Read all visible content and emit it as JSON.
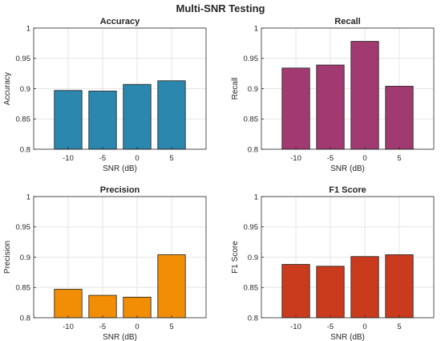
{
  "figure": {
    "title": "Multi-SNR Testing"
  },
  "chart_data": [
    {
      "type": "bar",
      "title": "Accuracy",
      "xlabel": "SNR (dB)",
      "ylabel": "Accuracy",
      "categories": [
        "-10",
        "-5",
        "0",
        "5"
      ],
      "values": [
        0.897,
        0.896,
        0.907,
        0.913
      ],
      "ylim": [
        0.8,
        1
      ],
      "yticks": [
        "0.8",
        "0.85",
        "0.9",
        "0.95",
        "1"
      ],
      "color": "#2B87AD",
      "grid": true
    },
    {
      "type": "bar",
      "title": "Recall",
      "xlabel": "SNR (dB)",
      "ylabel": "Recall",
      "categories": [
        "-10",
        "-5",
        "0",
        "5"
      ],
      "values": [
        0.934,
        0.939,
        0.978,
        0.904
      ],
      "ylim": [
        0.8,
        1
      ],
      "yticks": [
        "0.8",
        "0.85",
        "0.9",
        "0.95",
        "1"
      ],
      "color": "#A23A72",
      "grid": true
    },
    {
      "type": "bar",
      "title": "Precision",
      "xlabel": "SNR (dB)",
      "ylabel": "Precision",
      "categories": [
        "-10",
        "-5",
        "0",
        "5"
      ],
      "values": [
        0.847,
        0.837,
        0.834,
        0.904
      ],
      "ylim": [
        0.8,
        1
      ],
      "yticks": [
        "0.8",
        "0.85",
        "0.9",
        "0.95",
        "1"
      ],
      "color": "#F28E05",
      "grid": true
    },
    {
      "type": "bar",
      "title": "F1 Score",
      "xlabel": "SNR (dB)",
      "ylabel": "F1 Score",
      "categories": [
        "-10",
        "-5",
        "0",
        "5"
      ],
      "values": [
        0.888,
        0.885,
        0.901,
        0.904
      ],
      "ylim": [
        0.8,
        1
      ],
      "yticks": [
        "0.8",
        "0.85",
        "0.9",
        "0.95",
        "1"
      ],
      "color": "#C93B1C",
      "grid": true
    }
  ]
}
